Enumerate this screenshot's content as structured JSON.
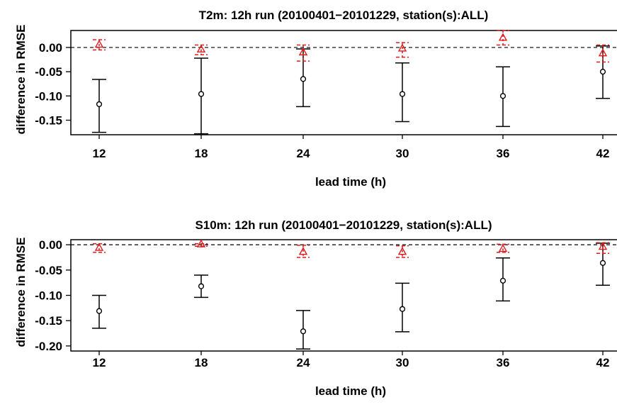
{
  "chart_data": [
    {
      "type": "scatter",
      "title": "T2m: 12h run (20100401−20101229, station(s):ALL)",
      "xlabel": "lead time (h)",
      "ylabel": "difference in RMSE",
      "x": [
        12,
        18,
        24,
        30,
        36,
        42
      ],
      "x_tick_labels": [
        "12",
        "18",
        "24",
        "30",
        "36",
        "42"
      ],
      "y_tick_values": [
        0.0,
        -0.05,
        -0.1,
        -0.15
      ],
      "y_tick_labels": [
        "0.00",
        "-0.05",
        "-0.10",
        "-0.15"
      ],
      "ylim": [
        -0.18,
        0.035
      ],
      "reference_line": 0.0,
      "series": [
        {
          "marker": "circle",
          "color": "#000000",
          "values": [
            -0.117,
            -0.096,
            -0.065,
            -0.096,
            -0.1,
            -0.05
          ],
          "lower": [
            -0.175,
            -0.178,
            -0.122,
            -0.153,
            -0.163,
            -0.105
          ],
          "upper": [
            -0.066,
            -0.022,
            -0.003,
            -0.032,
            -0.04,
            0.003
          ]
        },
        {
          "marker": "triangle",
          "color": "#e31a1c",
          "values": [
            0.006,
            -0.004,
            -0.01,
            -0.002,
            0.02,
            -0.012
          ],
          "lower": [
            -0.005,
            -0.015,
            -0.028,
            -0.02,
            0.005,
            -0.03
          ],
          "upper": [
            0.016,
            0.005,
            0.005,
            0.01,
            0.035,
            0.005
          ]
        }
      ]
    },
    {
      "type": "scatter",
      "title": "S10m: 12h run (20100401−20101229, station(s):ALL)",
      "xlabel": "lead time (h)",
      "ylabel": "difference in RMSE",
      "x": [
        12,
        18,
        24,
        30,
        36,
        42
      ],
      "x_tick_labels": [
        "12",
        "18",
        "24",
        "30",
        "36",
        "42"
      ],
      "y_tick_values": [
        0.0,
        -0.05,
        -0.1,
        -0.15,
        -0.2
      ],
      "y_tick_labels": [
        "0.00",
        "-0.05",
        "-0.10",
        "-0.15",
        "-0.20"
      ],
      "ylim": [
        -0.21,
        0.01
      ],
      "reference_line": 0.0,
      "series": [
        {
          "marker": "circle",
          "color": "#000000",
          "values": [
            -0.131,
            -0.082,
            -0.171,
            -0.127,
            -0.071,
            -0.036
          ],
          "lower": [
            -0.165,
            -0.104,
            -0.206,
            -0.172,
            -0.111,
            -0.08
          ],
          "upper": [
            -0.1,
            -0.06,
            -0.13,
            -0.076,
            -0.026,
            0.003
          ]
        },
        {
          "marker": "triangle",
          "color": "#e31a1c",
          "values": [
            -0.006,
            0.001,
            -0.014,
            -0.014,
            -0.008,
            -0.004
          ],
          "lower": [
            -0.015,
            -0.003,
            -0.025,
            -0.025,
            -0.015,
            -0.017
          ],
          "upper": [
            0.002,
            0.002,
            -0.001,
            -0.002,
            0.001,
            0.004
          ]
        }
      ]
    }
  ]
}
